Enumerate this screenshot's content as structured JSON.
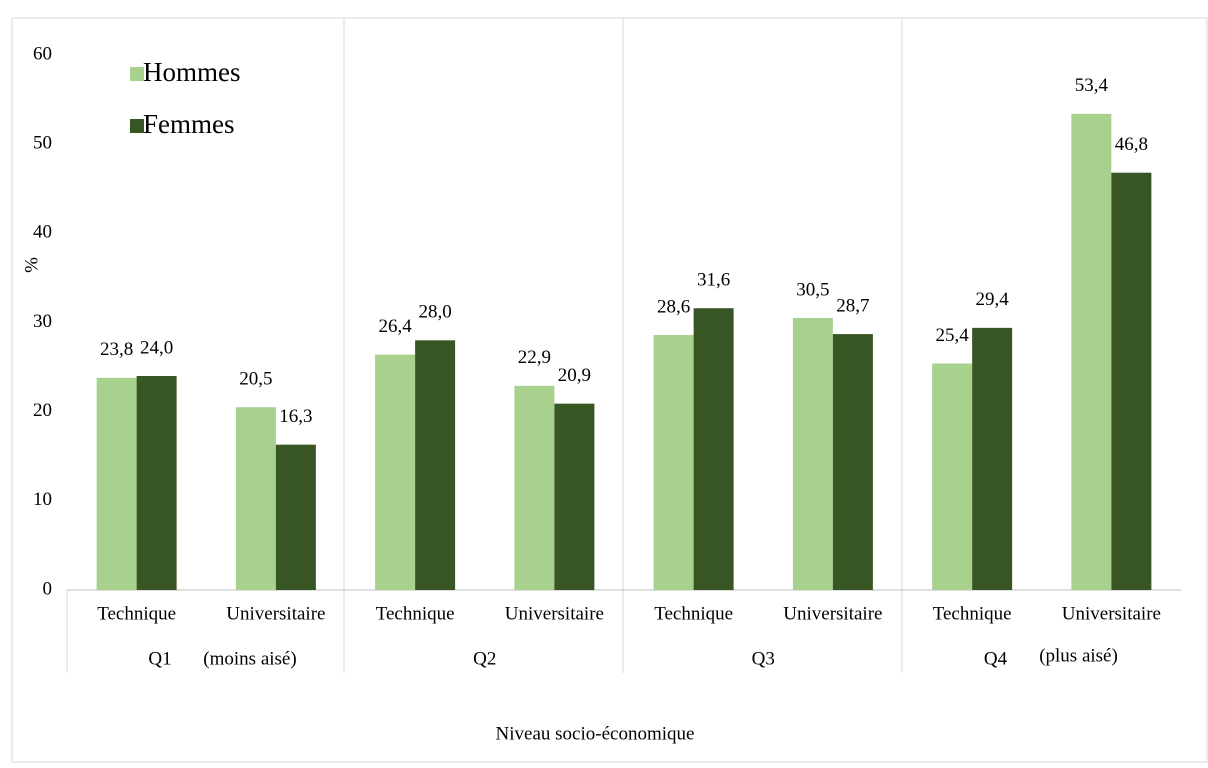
{
  "chart_data": {
    "type": "bar",
    "ylabel": "%",
    "xlabel": "Niveau socio-économique",
    "categories": [
      "Technique",
      "Universitaire",
      "Technique",
      "Universitaire",
      "Technique",
      "Universitaire",
      "Technique",
      "Universitaire"
    ],
    "groups": [
      "Q1",
      "Q2",
      "Q3",
      "Q4"
    ],
    "group_notes": [
      "(moins aisé)",
      null,
      null,
      "(plus aisé)"
    ],
    "series": [
      {
        "name": "Hommes",
        "color": "#a9d18e",
        "values": [
          23.8,
          20.5,
          26.4,
          22.9,
          28.6,
          30.5,
          25.4,
          53.4
        ],
        "value_labels": [
          "23,8",
          "20,5",
          "26,4",
          "22,9",
          "28,6",
          "30,5",
          "25,4",
          "53,4"
        ]
      },
      {
        "name": "Femmes",
        "color": "#375623",
        "values": [
          24.0,
          16.3,
          28.0,
          20.9,
          31.6,
          28.7,
          29.4,
          46.8
        ],
        "value_labels": [
          "24,0",
          "16,3",
          "28,0",
          "20,9",
          "31,6",
          "28,7",
          "29,4",
          "46,8"
        ]
      }
    ],
    "ylim": [
      0,
      60
    ],
    "yticks": [
      0,
      10,
      20,
      30,
      40,
      50,
      60
    ],
    "grid": false,
    "legend": "upper left"
  }
}
